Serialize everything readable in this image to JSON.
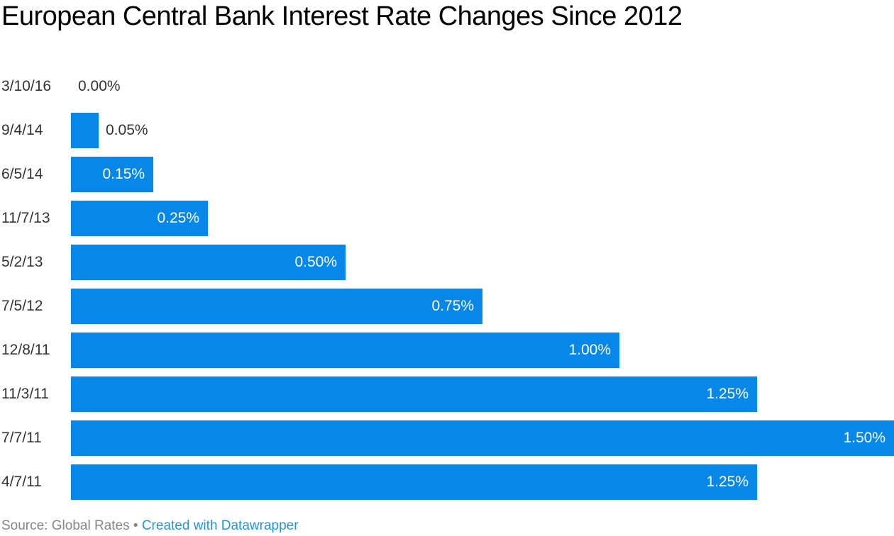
{
  "chart_data": {
    "type": "bar",
    "orientation": "horizontal",
    "title": "European Central Bank Interest Rate Changes Since 2012",
    "categories": [
      "3/10/16",
      "9/4/14",
      "6/5/14",
      "11/7/13",
      "5/2/13",
      "7/5/12",
      "12/8/11",
      "11/3/11",
      "7/7/11",
      "4/7/11"
    ],
    "values": [
      0.0,
      0.05,
      0.15,
      0.25,
      0.5,
      0.75,
      1.0,
      1.25,
      1.5,
      1.25
    ],
    "value_labels": [
      "0.00%",
      "0.05%",
      "0.15%",
      "0.25%",
      "0.50%",
      "0.75%",
      "1.00%",
      "1.25%",
      "1.50%",
      "1.25%"
    ],
    "xlabel": "",
    "ylabel": "",
    "xlim": [
      0,
      1.5
    ],
    "grid": false,
    "legend": "none"
  },
  "colors": {
    "bar": "#0788e8",
    "label_dark": "#333333",
    "label_light": "#ffffff",
    "footer_gray": "#868686",
    "link_blue": "#2196d9"
  },
  "footer": {
    "source_prefix": "Source: ",
    "source_value": "Global Rates",
    "separator": " • ",
    "attribution": "Created with Datawrapper"
  }
}
